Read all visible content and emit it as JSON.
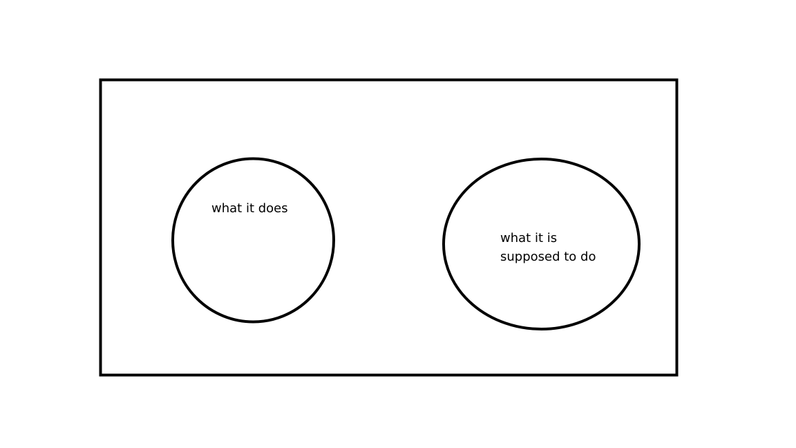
{
  "diagram": {
    "left_circle": {
      "label": "what it does"
    },
    "right_circle": {
      "label_line1": "what it is",
      "label_line2": "supposed to do"
    }
  },
  "colors": {
    "background": "#ffffff",
    "stroke": "#000000"
  }
}
